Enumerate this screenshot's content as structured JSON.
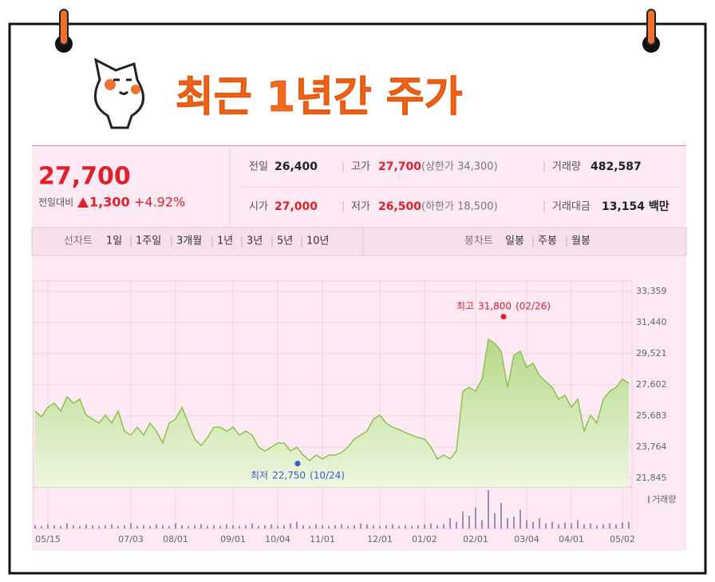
{
  "header": {
    "title": "최근 1년간 주가"
  },
  "quote": {
    "price": "27,700",
    "change_label": "전일대비",
    "change": "1,300",
    "change_pct": "+4.92%",
    "rows": [
      [
        {
          "label": "전일",
          "value": "26,400"
        },
        {
          "label": "고가",
          "value": "27,700",
          "note": "(상한가 34,300)"
        },
        {
          "label": "거래량",
          "value": "482,587"
        }
      ],
      [
        {
          "label": "시가",
          "value": "27,000"
        },
        {
          "label": "저가",
          "value": "26,500",
          "note": "(하한가 18,500)"
        },
        {
          "label": "거래대금",
          "value": "13,154 백만"
        }
      ]
    ]
  },
  "tabs": {
    "line": {
      "label": "선차트",
      "items": [
        "1일",
        "1주일",
        "3개월",
        "1년",
        "3년",
        "5년",
        "10년"
      ],
      "active": "1년"
    },
    "candle": {
      "label": "봉차트",
      "items": [
        "일봉",
        "주봉",
        "월봉"
      ]
    }
  },
  "chart_data": {
    "type": "line",
    "color": "#8cc34a",
    "grid": true,
    "categories": [
      null,
      null,
      "05/15",
      null,
      null,
      null,
      null,
      null,
      null,
      null,
      null,
      null,
      null,
      null,
      null,
      "07/03",
      null,
      null,
      null,
      null,
      null,
      null,
      "08/01",
      null,
      null,
      null,
      null,
      null,
      null,
      null,
      null,
      "09/01",
      null,
      null,
      null,
      null,
      null,
      null,
      "10/04",
      null,
      null,
      null,
      null,
      null,
      null,
      "11/01",
      null,
      null,
      null,
      null,
      null,
      null,
      null,
      null,
      "12/01",
      null,
      null,
      null,
      null,
      null,
      null,
      "01/02",
      null,
      null,
      null,
      null,
      null,
      null,
      null,
      "02/01",
      null,
      null,
      null,
      null,
      null,
      null,
      null,
      "03/04",
      null,
      null,
      null,
      null,
      null,
      null,
      "04/01",
      null,
      null,
      null,
      null,
      null,
      null,
      null,
      "05/02",
      null
    ],
    "values": [
      25980,
      25630,
      26220,
      26470,
      25980,
      26860,
      26470,
      26720,
      25730,
      25490,
      25240,
      25730,
      25240,
      25980,
      24750,
      24500,
      24990,
      24500,
      25240,
      24750,
      24010,
      25240,
      25490,
      26220,
      25240,
      24260,
      23860,
      24350,
      24990,
      24990,
      24750,
      24990,
      24500,
      24750,
      24500,
      23760,
      23520,
      23760,
      24010,
      24010,
      23520,
      23760,
      23270,
      22930,
      23270,
      23030,
      23270,
      23270,
      23420,
      23760,
      24260,
      24500,
      24750,
      25490,
      25730,
      25240,
      24990,
      24850,
      24650,
      24500,
      24350,
      24260,
      23760,
      23030,
      23270,
      23030,
      23520,
      27210,
      27450,
      27210,
      27950,
      30410,
      30160,
      29670,
      27450,
      29420,
      29670,
      28680,
      28930,
      28190,
      27800,
      27450,
      26720,
      26960,
      26220,
      26720,
      24750,
      25730,
      25240,
      26720,
      27210,
      27450,
      27950,
      27700
    ],
    "ylim": [
      21845,
      33359
    ],
    "yticks": [
      {
        "value": 33359,
        "label": "33,359"
      },
      {
        "value": 31440,
        "label": "31,440"
      },
      {
        "value": 29521,
        "label": "29,521"
      },
      {
        "value": 27602,
        "label": "27,602"
      },
      {
        "value": 25683,
        "label": "25,683"
      },
      {
        "value": 23764,
        "label": "23,764"
      },
      {
        "value": 21845,
        "label": "21,845"
      }
    ],
    "annotations": [
      {
        "text": "최고",
        "value": 31800,
        "value_label": "31,800",
        "date": "(02/26)",
        "color": "#e0202b"
      },
      {
        "text": "최저",
        "value": 22750,
        "value_label": "22,750",
        "date": "(10/24)",
        "color": "#3a5ccc"
      }
    ],
    "volume": {
      "name": "거래량",
      "color": "#9a8fb8",
      "values": [
        4,
        3,
        5,
        4,
        3,
        6,
        4,
        3,
        5,
        4,
        3,
        4,
        5,
        3,
        4,
        6,
        3,
        4,
        3,
        5,
        4,
        3,
        6,
        4,
        3,
        4,
        5,
        3,
        4,
        3,
        5,
        4,
        3,
        4,
        6,
        3,
        4,
        5,
        3,
        4,
        6,
        8,
        4,
        3,
        5,
        4,
        3,
        4,
        5,
        3,
        4,
        6,
        5,
        4,
        3,
        4,
        5,
        3,
        4,
        3,
        4,
        5,
        6,
        4,
        5,
        12,
        8,
        20,
        15,
        25,
        10,
        45,
        18,
        30,
        12,
        14,
        22,
        10,
        8,
        12,
        6,
        8,
        5,
        7,
        6,
        10,
        5,
        6,
        4,
        5,
        6,
        5,
        7,
        8
      ]
    }
  }
}
